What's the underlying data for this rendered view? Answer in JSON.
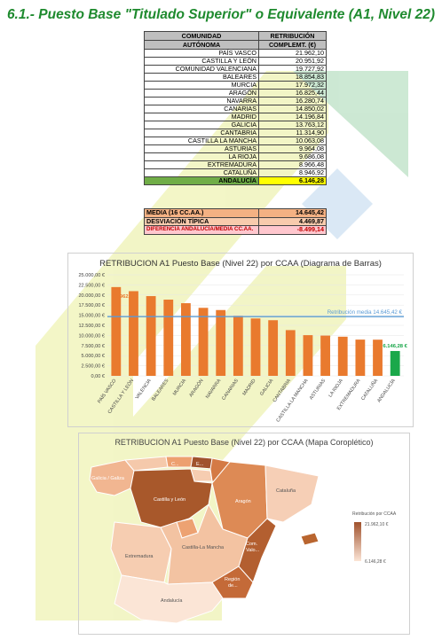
{
  "title": "6.1.- Puesto Base \"Titulado Superior\" o Equivalente (A1, Nivel 22)",
  "table": {
    "header_col1_line1": "COMUNIDAD",
    "header_col1_line2": "AUTÓNOMA",
    "header_col2_line1": "RETRIBUCIÓN",
    "header_col2_line2": "COMPLEMT. (€)",
    "rows": [
      {
        "region": "PAÍS VASCO",
        "value": "21.962,10"
      },
      {
        "region": "CASTILLA Y LEÓN",
        "value": "20.951,92"
      },
      {
        "region": "COMUNIDAD VALENCIANA",
        "value": "19.727,92"
      },
      {
        "region": "BALEARES",
        "value": "18.854,83"
      },
      {
        "region": "MURCIA",
        "value": "17.972,32"
      },
      {
        "region": "ARAGÓN",
        "value": "16.825,44"
      },
      {
        "region": "NAVARRA",
        "value": "16.280,74"
      },
      {
        "region": "CANARIAS",
        "value": "14.850,02"
      },
      {
        "region": "MADRID",
        "value": "14.196,84"
      },
      {
        "region": "GALICIA",
        "value": "13.763,12"
      },
      {
        "region": "CANTABRIA",
        "value": "11.314,90"
      },
      {
        "region": "CASTILLA LA MANCHA",
        "value": "10.063,08"
      },
      {
        "region": "ASTURIAS",
        "value": "9.964,08"
      },
      {
        "region": "LA RIOJA",
        "value": "9.686,08"
      },
      {
        "region": "EXTREMADURA",
        "value": "8.966,48"
      },
      {
        "region": "CATALUÑA",
        "value": "8.946,92"
      },
      {
        "region": "ANDALUCÍA",
        "value": "6.146,28"
      }
    ],
    "summary": [
      {
        "label": "MEDIA (16 CC.AA.)",
        "value": "14.645,42",
        "bg": "#f4b183",
        "color": "#000000"
      },
      {
        "label": "DESVIACIÓN TÍPICA",
        "value": "4.469,87",
        "bg": "#f8cbad",
        "color": "#000000"
      },
      {
        "label": "DIFERENCIA ANDALUCÍA/MEDIA CC.AA.",
        "value": "-8.499,14",
        "bg": "#ffc7ce",
        "color": "#c00000"
      }
    ]
  },
  "chart_data": {
    "type": "bar",
    "title": "RETRIBUCION A1  Puesto Base (Nivel 22) por CCAA (Diagrama de Barras)",
    "categories": [
      "PAÍS VASCO",
      "CASTILLA Y LEÓN",
      "VALENCIA",
      "BALEARES",
      "MURCIA",
      "ARAGÓN",
      "NAVARRA",
      "CANARIAS",
      "MADRID",
      "GALICIA",
      "CANTABRIA",
      "CASTILLA LA MANCHA",
      "ASTURIAS",
      "LA RIOJA",
      "EXTREMADURA",
      "CATALUÑA",
      "ANDALUCÍA"
    ],
    "values": [
      21962.1,
      20951.92,
      19727.92,
      18854.83,
      17972.32,
      16825.44,
      16280.74,
      14850.02,
      14196.84,
      13763.12,
      11314.9,
      10063.08,
      9964.08,
      9686.08,
      8966.48,
      8946.92,
      6146.28
    ],
    "yticks": [
      "0,00 €",
      "2.500,00 €",
      "5.000,00 €",
      "7.500,00 €",
      "10.000,00 €",
      "12.500,00 €",
      "15.000,00 €",
      "17.500,00 €",
      "20.000,00 €",
      "22.500,00 €",
      "25.000,00 €"
    ],
    "ylim": [
      0,
      25000
    ],
    "mean_value": 14645.42,
    "mean_label": "Retribución media 14.645,42 €",
    "label_max": "21.962,10€",
    "label_min": "6.146,28 €",
    "bar_color": "#e97a2e",
    "bar_color_highlight": "#1aa84a",
    "mean_color": "#5b9bd5"
  },
  "map": {
    "title": "RETRIBUCION A1  Puesto Base (Nivel 22) por CCAA (Mapa Coroplético)",
    "legend_title": "Retribución por CCAA",
    "legend_max": "21.962,10 €",
    "legend_min": "6.146,28 €",
    "labels": {
      "galicia": "Galicia / Galiza",
      "castilla_leon": "Castilla y León",
      "aragon": "Aragón",
      "cataluna": "Cataluña",
      "extremadura": "Extremadura",
      "clm": "Castilla-La Mancha",
      "valencia_1": "Com.",
      "valencia_2": "Valo...",
      "murcia_1": "Región",
      "murcia_2": "de...",
      "andalucia": "Andalucía",
      "pv": "E...",
      "cantabria": "C..."
    }
  }
}
